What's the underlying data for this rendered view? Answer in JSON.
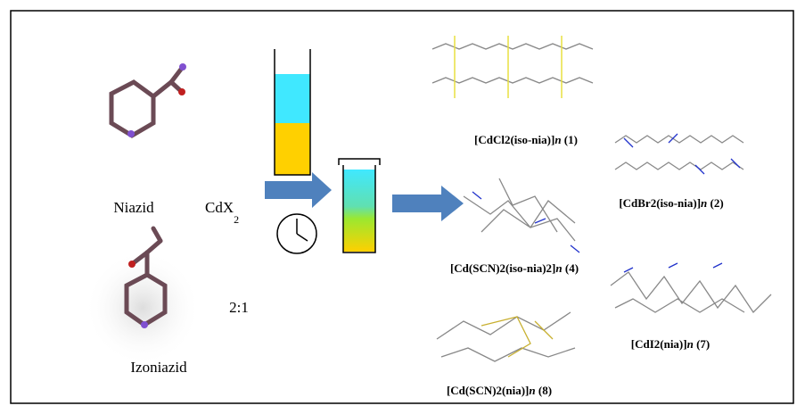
{
  "ligands": [
    {
      "label": "Niazid"
    },
    {
      "label": "Izoniazid"
    }
  ],
  "reagent": {
    "base": "CdX",
    "subscript": "2"
  },
  "ratio": "2:1",
  "products": [
    {
      "formula": "[CdCl2(iso-nia)]",
      "n": "n",
      "number": "(1)"
    },
    {
      "formula": "[CdBr2(iso-nia)]",
      "n": "n",
      "number": "(2)"
    },
    {
      "formula": "[Cd(SCN)2(iso-nia)2]",
      "n": "n",
      "number": "(4)"
    },
    {
      "formula": "[CdI2(nia)]",
      "n": "n",
      "number": "(7)"
    },
    {
      "formula": "[Cd(SCN)2(nia)]",
      "n": "n",
      "number": "(8)"
    }
  ]
}
